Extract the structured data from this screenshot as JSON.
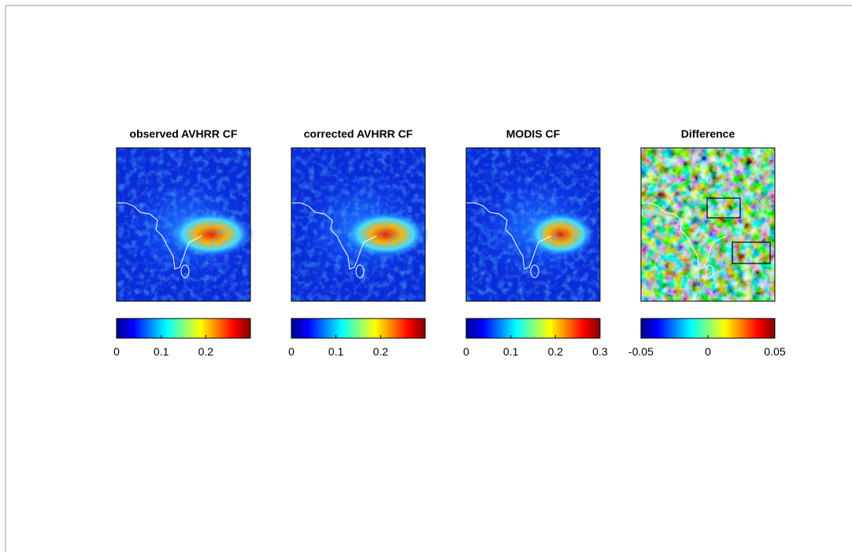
{
  "panels": [
    {
      "title": "observed AVHRR CF",
      "colorbar": {
        "lim": [
          0,
          0.3
        ],
        "ticks": [
          0,
          0.1,
          0.2
        ]
      }
    },
    {
      "title": "corrected AVHRR CF",
      "colorbar": {
        "lim": [
          0,
          0.3
        ],
        "ticks": [
          0,
          0.1,
          0.2
        ]
      }
    },
    {
      "title": "MODIS CF",
      "colorbar": {
        "lim": [
          0,
          0.3
        ],
        "ticks": [
          0,
          0.1,
          0.2,
          0.3
        ]
      }
    },
    {
      "title": "Difference",
      "colorbar": {
        "lim": [
          -0.05,
          0.05
        ],
        "ticks": [
          -0.05,
          0,
          0.05
        ]
      }
    }
  ]
}
